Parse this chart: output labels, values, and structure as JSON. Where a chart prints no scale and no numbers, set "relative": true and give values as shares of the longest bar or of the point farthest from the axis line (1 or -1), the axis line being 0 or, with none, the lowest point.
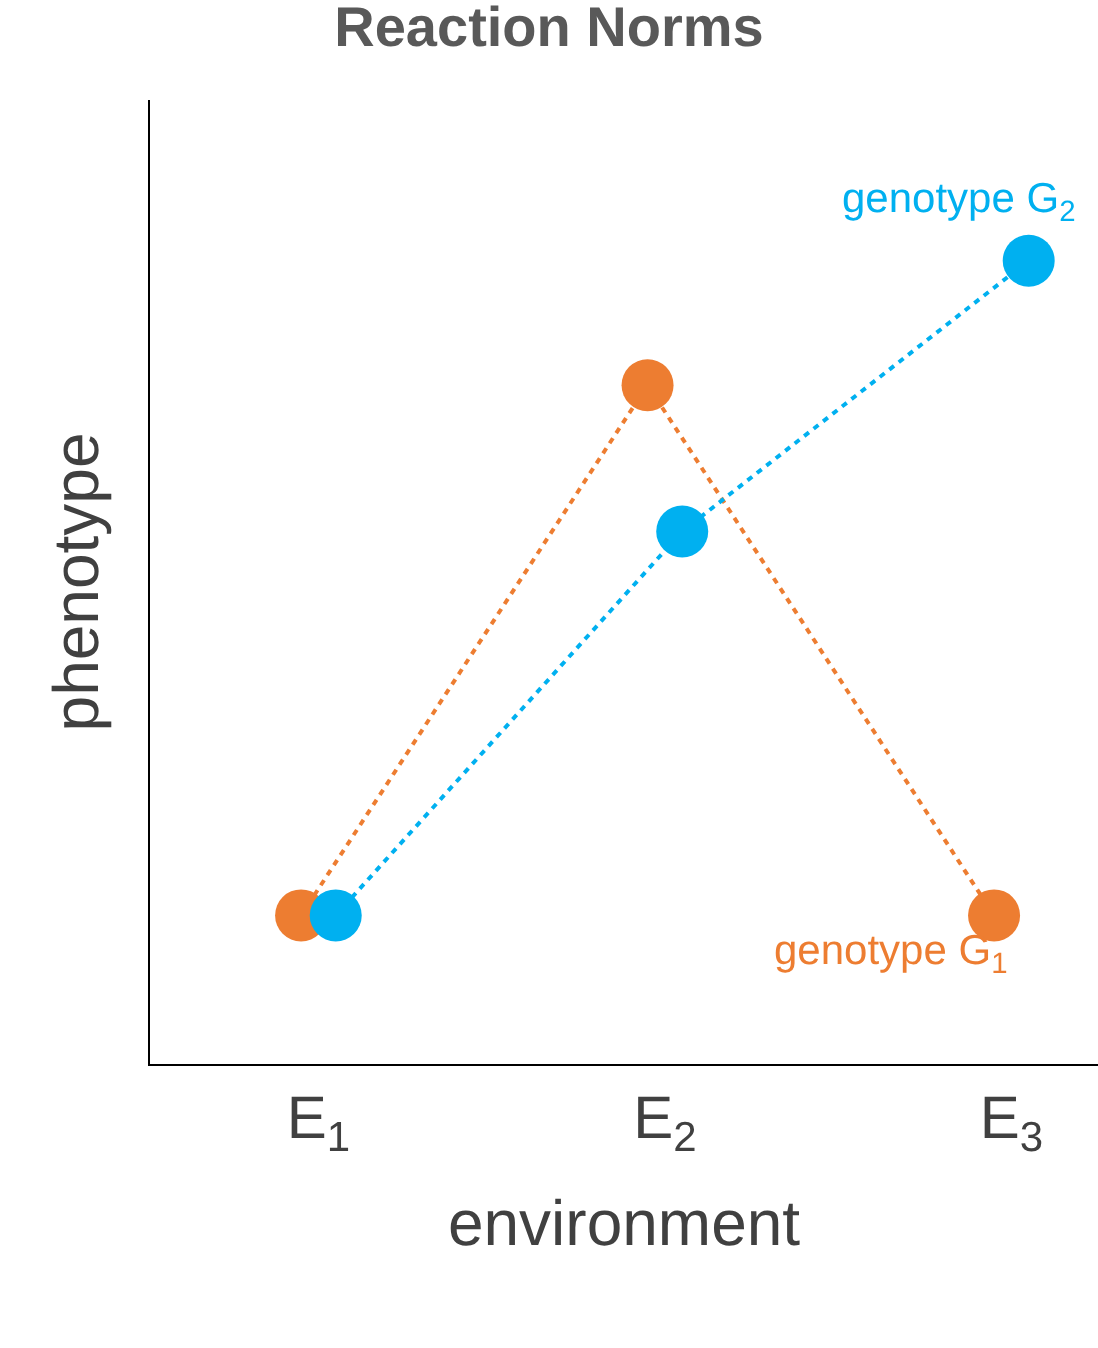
{
  "chart_data": {
    "type": "line",
    "title": "Reaction Norms",
    "xlabel": "environment",
    "ylabel": "phenotype",
    "categories": [
      "E$_{1}$",
      "E$_{2}$",
      "E$_{3}$"
    ],
    "relative": true,
    "legend": false,
    "marker": "circle",
    "line_style": "dotted",
    "series": [
      {
        "name": "genotype G$_{1}$",
        "color": "#ed7d31",
        "values": [
          0.185,
          0.845,
          0.185
        ]
      },
      {
        "name": "genotype G$_{2}$",
        "color": "#00b0f0",
        "values": [
          0.185,
          0.663,
          1.0
        ]
      }
    ]
  }
}
